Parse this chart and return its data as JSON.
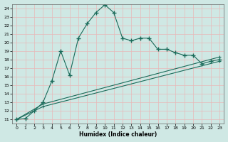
{
  "xlabel": "Humidex (Indice chaleur)",
  "bg_color": "#cfe8e4",
  "grid_color": "#e8b8b8",
  "line_color": "#1a6b5a",
  "xlim": [
    -0.5,
    23.5
  ],
  "ylim": [
    10.5,
    24.5
  ],
  "xticks": [
    0,
    1,
    2,
    3,
    4,
    5,
    6,
    7,
    8,
    9,
    10,
    11,
    12,
    13,
    14,
    15,
    16,
    17,
    18,
    19,
    20,
    21,
    22,
    23
  ],
  "yticks": [
    11,
    12,
    13,
    14,
    15,
    16,
    17,
    18,
    19,
    20,
    21,
    22,
    23,
    24
  ],
  "series1_x": [
    0,
    1,
    2,
    3,
    4,
    5,
    6,
    7,
    8,
    9,
    10,
    11,
    12,
    13,
    14,
    15,
    16,
    17,
    18,
    19,
    20,
    21,
    22,
    23
  ],
  "series1_y": [
    11.0,
    11.1,
    12.0,
    13.0,
    15.5,
    19.0,
    16.2,
    20.5,
    22.2,
    23.5,
    24.4,
    23.5,
    20.5,
    20.2,
    20.5,
    20.5,
    19.2,
    19.2,
    18.8,
    18.5,
    18.5,
    17.5,
    17.8,
    18.0
  ],
  "series2_x": [
    0,
    3,
    23
  ],
  "series2_y": [
    11.0,
    12.8,
    18.3
  ],
  "series3_x": [
    0,
    3,
    23
  ],
  "series3_y": [
    11.0,
    12.5,
    17.8
  ]
}
